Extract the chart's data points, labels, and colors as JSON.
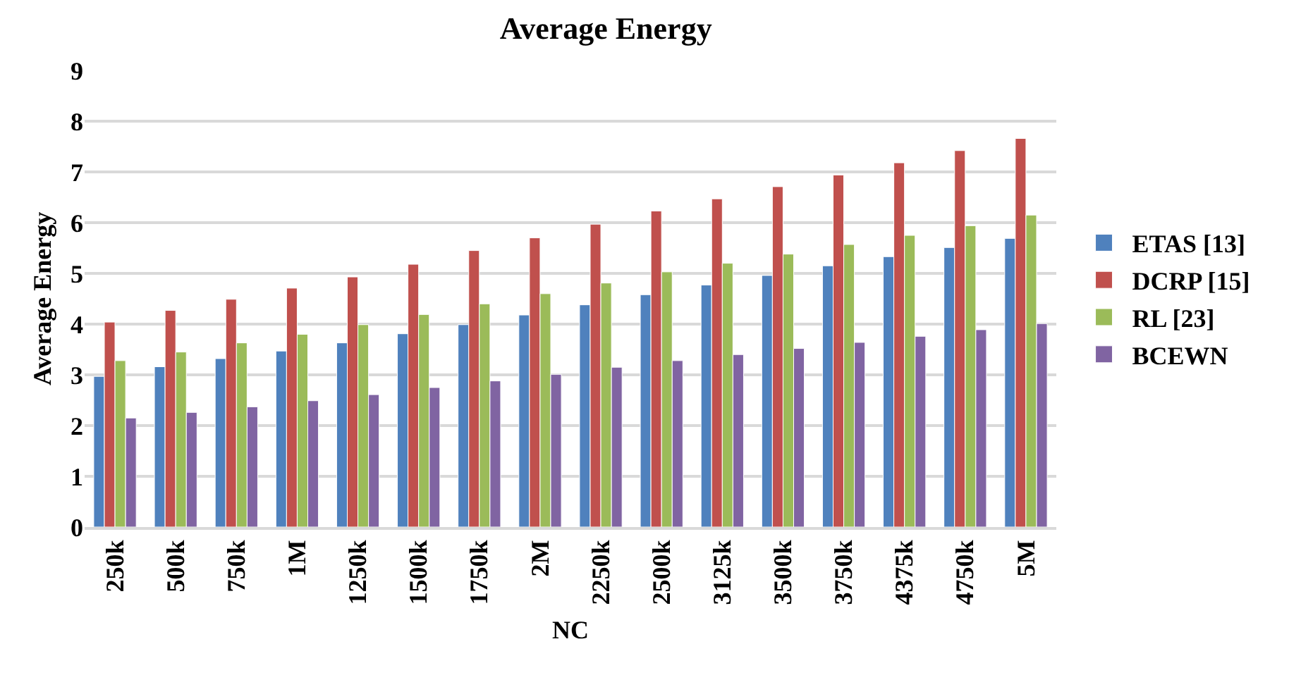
{
  "chart_data": {
    "type": "bar",
    "title": "Average Energy",
    "xlabel": "NC",
    "ylabel": "Average Energy",
    "categories": [
      "250k",
      "500k",
      "750k",
      "1M",
      "1250k",
      "1500k",
      "1750k",
      "2M",
      "2250k",
      "2500k",
      "3125k",
      "3500k",
      "3750k",
      "4375k",
      "4750k",
      "5M"
    ],
    "series": [
      {
        "name": "ETAS [13]",
        "color": "#4f81bd",
        "values": [
          2.97,
          3.16,
          3.32,
          3.47,
          3.63,
          3.81,
          3.99,
          4.18,
          4.38,
          4.58,
          4.77,
          4.96,
          5.15,
          5.33,
          5.51,
          5.69
        ]
      },
      {
        "name": "DCRP [15]",
        "color": "#c0504d",
        "values": [
          4.04,
          4.27,
          4.49,
          4.71,
          4.93,
          5.18,
          5.45,
          5.7,
          5.97,
          6.23,
          6.47,
          6.71,
          6.94,
          7.18,
          7.42,
          7.66
        ]
      },
      {
        "name": "RL [23]",
        "color": "#9bbb59",
        "values": [
          3.28,
          3.45,
          3.63,
          3.8,
          3.99,
          4.19,
          4.4,
          4.6,
          4.81,
          5.03,
          5.2,
          5.38,
          5.57,
          5.75,
          5.94,
          6.15
        ]
      },
      {
        "name": "BCEWN",
        "color": "#8064a2",
        "values": [
          2.15,
          2.26,
          2.37,
          2.49,
          2.61,
          2.75,
          2.88,
          3.01,
          3.15,
          3.28,
          3.4,
          3.52,
          3.64,
          3.76,
          3.89,
          4.01
        ]
      }
    ],
    "ylim": [
      0,
      9
    ],
    "yticks": [
      0,
      1,
      2,
      3,
      4,
      5,
      6,
      7,
      8,
      9
    ],
    "grid": "y",
    "legend": "right"
  }
}
